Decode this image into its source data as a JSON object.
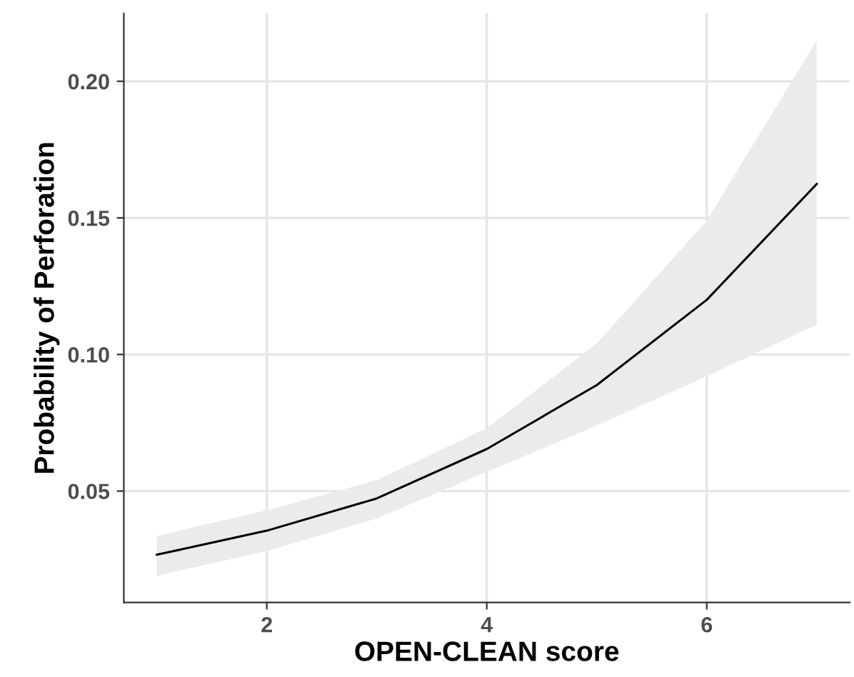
{
  "chart_data": {
    "type": "line",
    "xlabel": "OPEN-CLEAN score",
    "ylabel": "Probability of Perforation",
    "x": [
      1,
      2,
      3,
      4,
      5,
      6,
      7
    ],
    "series": [
      {
        "color": "#000000",
        "values": [
          0.0267,
          0.0355,
          0.0473,
          0.0654,
          0.0888,
          0.12,
          0.1624
        ],
        "lower": [
          0.019,
          0.028,
          0.04,
          0.057,
          0.074,
          0.092,
          0.111
        ],
        "upper": [
          0.0336,
          0.043,
          0.054,
          0.073,
          0.104,
          0.149,
          0.215
        ]
      }
    ],
    "xlim": [
      0.7,
      7.3
    ],
    "ylim": [
      0.0092,
      0.2248
    ],
    "xticks": [
      2,
      4,
      6
    ],
    "yticks": [
      {
        "value": 0.05,
        "label": "0.05"
      },
      {
        "value": 0.1,
        "label": "0.10"
      },
      {
        "value": 0.15,
        "label": "0.15"
      },
      {
        "value": 0.2,
        "label": "0.20"
      }
    ],
    "grid": true,
    "line_style": "solid"
  }
}
